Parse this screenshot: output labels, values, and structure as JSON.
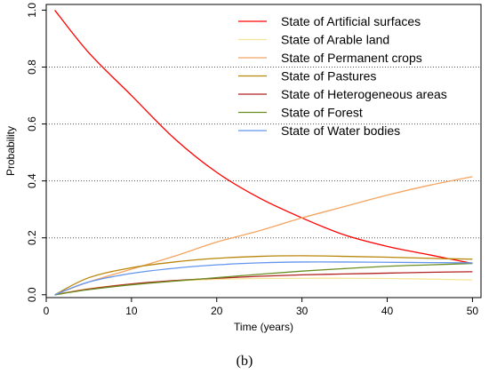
{
  "caption": "(b)",
  "chart_data": {
    "type": "line",
    "xlabel": "Time (years)",
    "ylabel": "Probability",
    "xlim": [
      0,
      51
    ],
    "ylim": [
      -0.01,
      1.02
    ],
    "xticks": [
      0,
      10,
      20,
      30,
      40,
      50
    ],
    "yticks": [
      0.0,
      0.2,
      0.4,
      0.6,
      0.8,
      1.0
    ],
    "ytick_labels": [
      "0.0",
      "0.2",
      "0.4",
      "0.6",
      "0.8",
      "1.0"
    ],
    "grid": "horizontal dotted at 0.2, 0.4, 0.6, 0.8",
    "legend_position": "top-right",
    "x": [
      1,
      5,
      10,
      15,
      20,
      25,
      30,
      35,
      40,
      45,
      50
    ],
    "series": [
      {
        "name": "State of Artificial surfaces",
        "color": "#ff0000",
        "values": [
          1.0,
          0.85,
          0.7,
          0.55,
          0.43,
          0.34,
          0.27,
          0.21,
          0.17,
          0.14,
          0.11
        ]
      },
      {
        "name": "State of Arable land",
        "color": "#f7e596",
        "values": [
          0.0,
          0.022,
          0.038,
          0.048,
          0.054,
          0.057,
          0.058,
          0.058,
          0.057,
          0.055,
          0.052
        ]
      },
      {
        "name": "State of Permanent crops",
        "color": "#f4a460",
        "values": [
          0.0,
          0.045,
          0.09,
          0.135,
          0.185,
          0.225,
          0.27,
          0.31,
          0.35,
          0.385,
          0.415
        ]
      },
      {
        "name": "State of Pastures",
        "color": "#b8860b",
        "values": [
          0.0,
          0.06,
          0.095,
          0.115,
          0.128,
          0.135,
          0.137,
          0.135,
          0.132,
          0.128,
          0.125
        ]
      },
      {
        "name": "State of Heterogeneous areas",
        "color": "#b22222",
        "values": [
          0.0,
          0.02,
          0.038,
          0.05,
          0.058,
          0.065,
          0.07,
          0.073,
          0.076,
          0.079,
          0.081
        ]
      },
      {
        "name": "State of Forest",
        "color": "#6b8e23",
        "values": [
          0.0,
          0.018,
          0.035,
          0.048,
          0.06,
          0.072,
          0.083,
          0.092,
          0.1,
          0.105,
          0.11
        ]
      },
      {
        "name": "State of Water bodies",
        "color": "#6495ed",
        "values": [
          0.0,
          0.045,
          0.075,
          0.093,
          0.105,
          0.112,
          0.115,
          0.115,
          0.114,
          0.113,
          0.112
        ]
      }
    ]
  }
}
